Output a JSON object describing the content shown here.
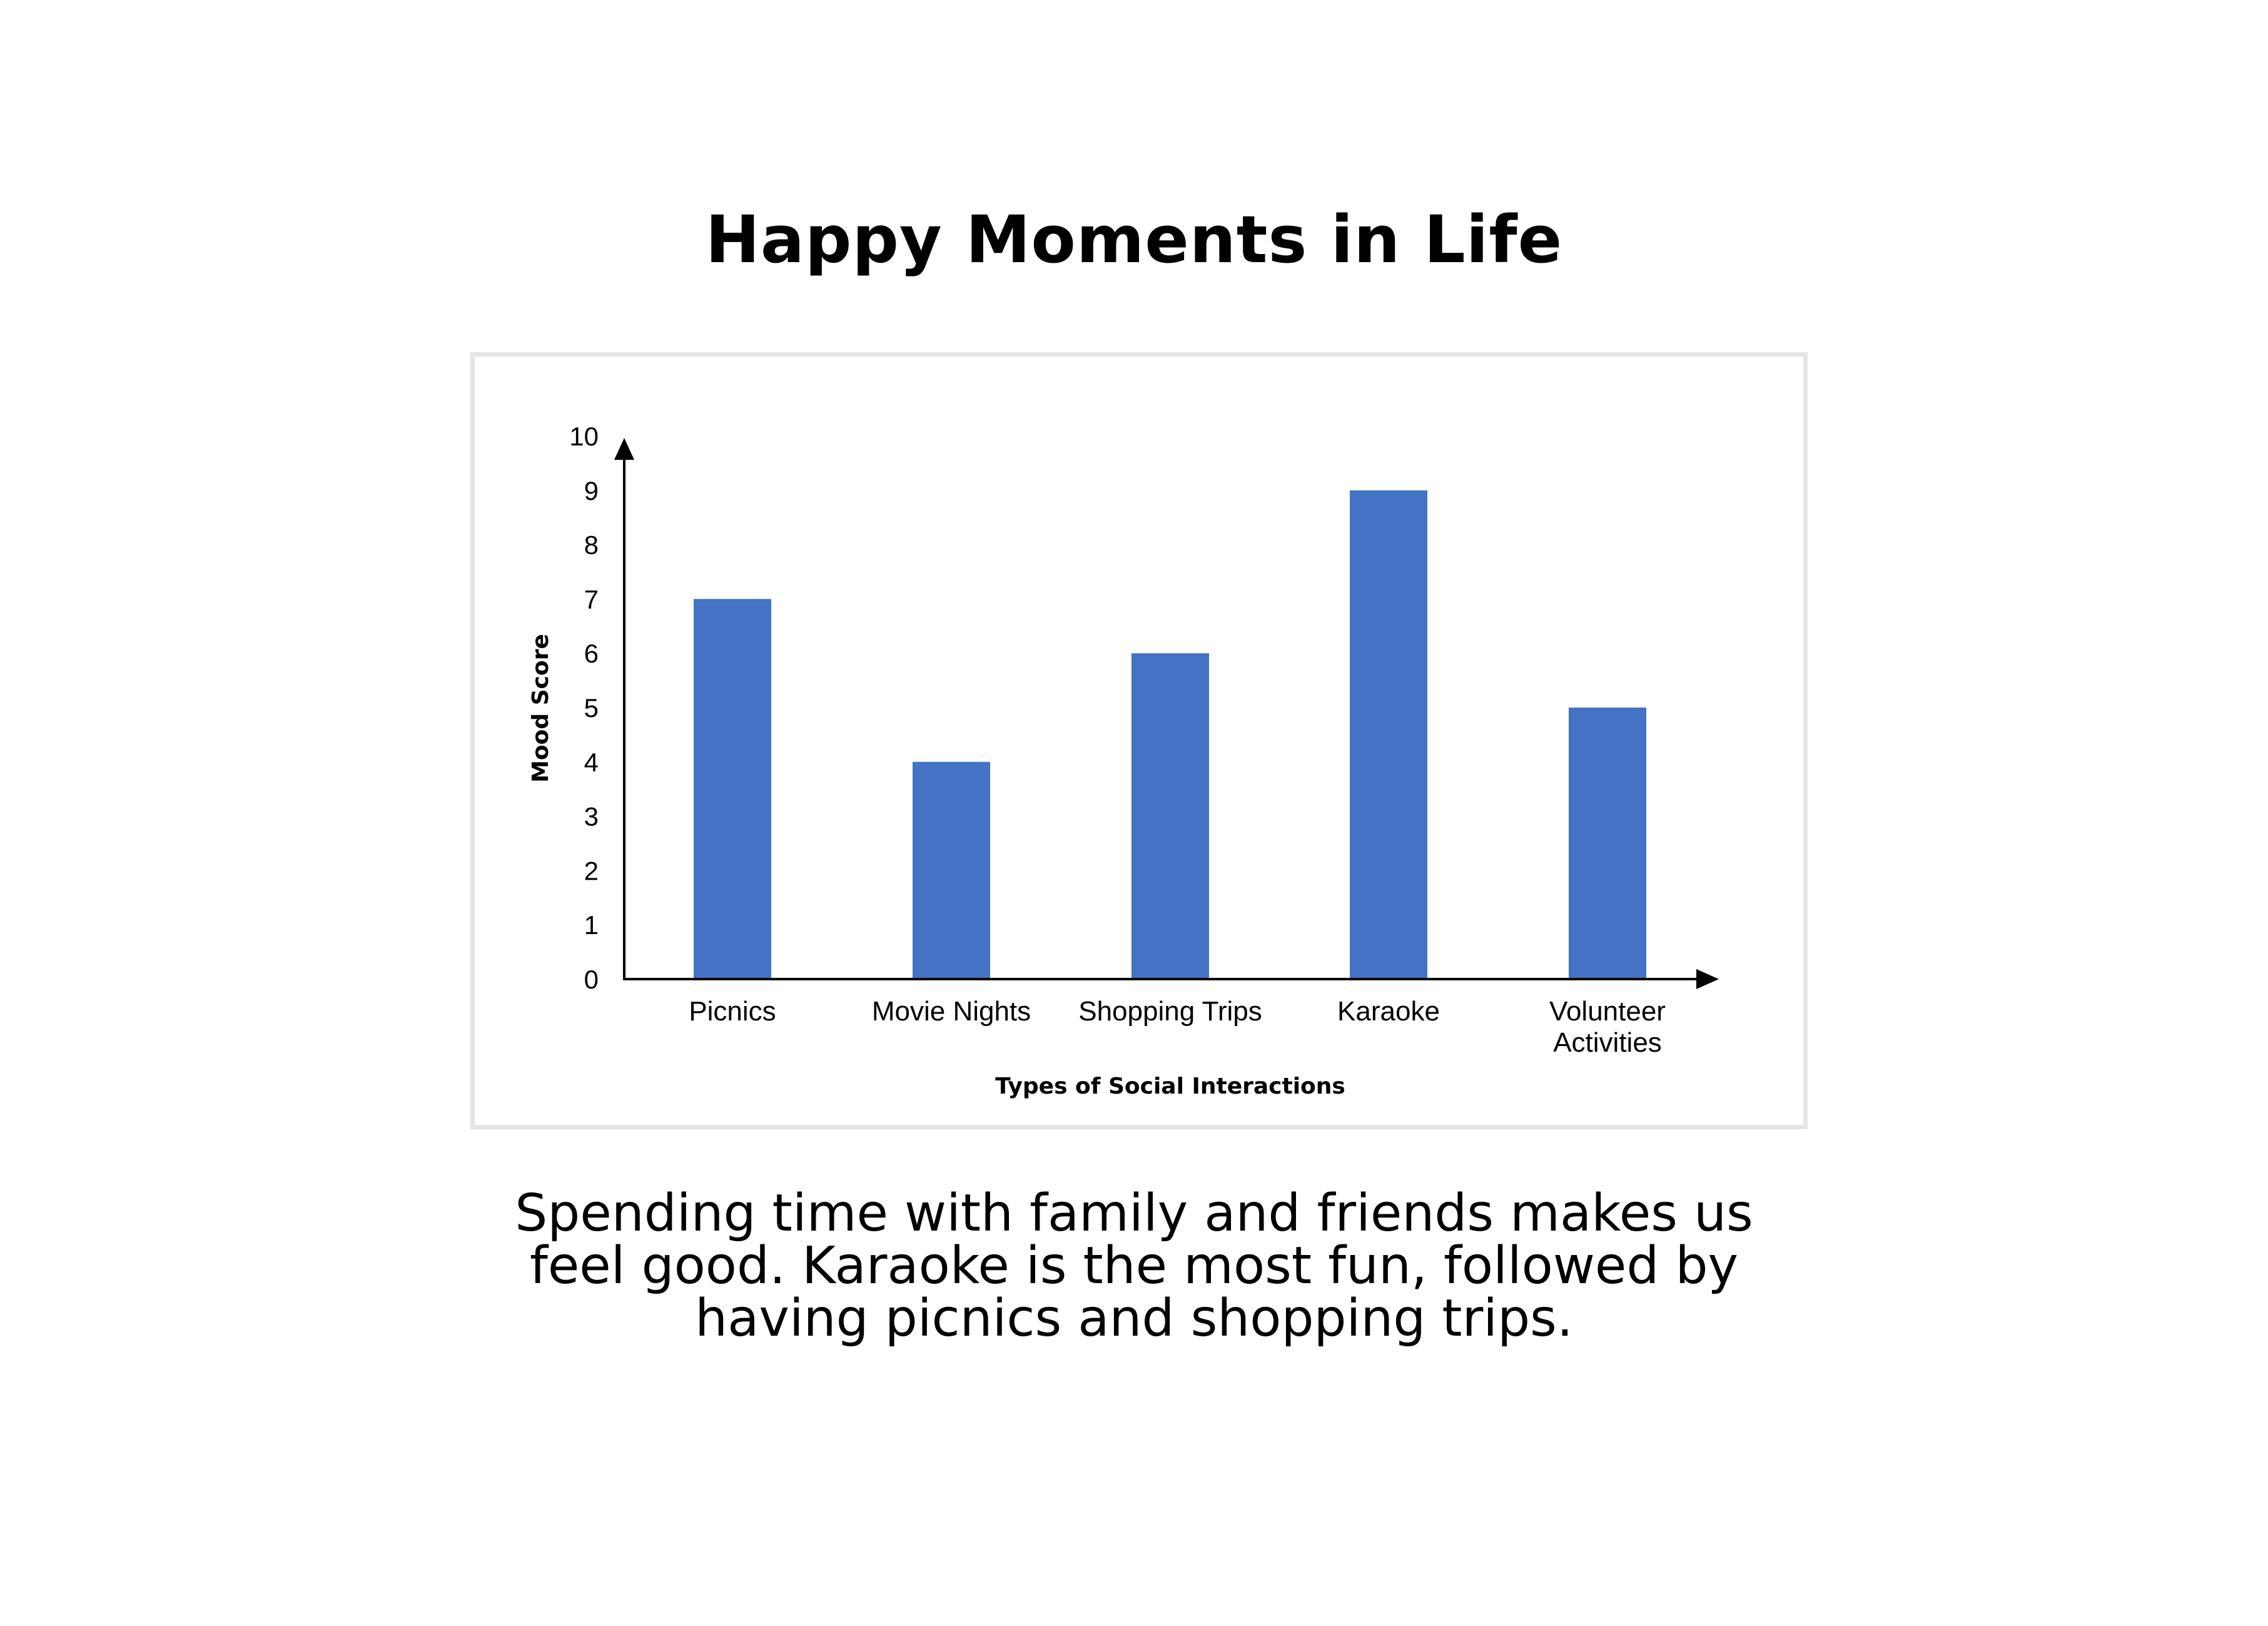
{
  "title": "Happy Moments in Life",
  "caption": "Spending time with family and friends makes us feel good. Karaoke is the most fun, followed by having picnics and shopping trips.",
  "chart_data": {
    "type": "bar",
    "categories": [
      "Picnics",
      "Movie Nights",
      "Shopping Trips",
      "Karaoke",
      "Volunteer Activities"
    ],
    "category_lines": [
      [
        "Picnics"
      ],
      [
        "Movie Nights"
      ],
      [
        "Shopping Trips"
      ],
      [
        "Karaoke"
      ],
      [
        "Volunteer",
        "Activities"
      ]
    ],
    "values": [
      7,
      4,
      6,
      9,
      5
    ],
    "xlabel": "Types of Social Interactions",
    "ylabel": "Mood Score",
    "ylim": [
      0,
      10
    ],
    "yticks": [
      "0",
      "1",
      "2",
      "3",
      "4",
      "5",
      "6",
      "7",
      "8",
      "9",
      "10"
    ],
    "bar_color": "#4472c4",
    "grid": false,
    "legend": "none"
  }
}
